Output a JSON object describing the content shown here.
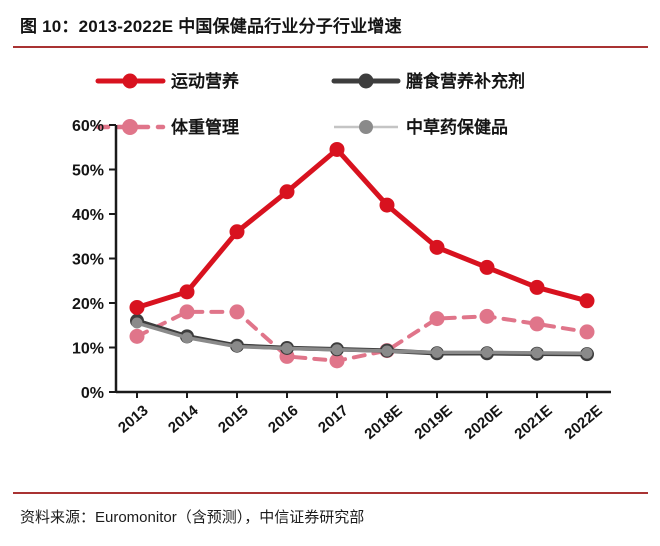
{
  "figure": {
    "title": "图 10：2013-2022E 中国保健品行业分子行业增速",
    "source": "资料来源：Euromonitor（含预测），中信证券研究部"
  },
  "colors": {
    "rule_red": "#a93333",
    "sports_red": "#d8121f",
    "dietary_dark": "#3d3d3d",
    "weight_pink": "#e0758a",
    "herbal_gray": "#8a8a8a",
    "herbal_legend_line": "#c4c4c4",
    "axis_black": "#1a1a1a"
  },
  "chart_data": {
    "type": "line",
    "title": "2013-2022E 中国保健品行业分子行业增速",
    "categories": [
      "2013",
      "2014",
      "2015",
      "2016",
      "2017",
      "2018E",
      "2019E",
      "2020E",
      "2021E",
      "2022E"
    ],
    "series": [
      {
        "key": "sports",
        "name": "运动营养",
        "color_key": "sports_red",
        "style": "solid",
        "values": [
          19,
          22.5,
          36,
          45,
          54.5,
          42,
          32.5,
          28,
          23.5,
          20.5
        ]
      },
      {
        "key": "dietary",
        "name": "膳食营养补充剂",
        "color_key": "dietary_dark",
        "style": "solid",
        "values": [
          16,
          12.5,
          10.4,
          9.9,
          9.6,
          9.3,
          8.7,
          8.7,
          8.6,
          8.5
        ]
      },
      {
        "key": "weight",
        "name": "体重管理",
        "color_key": "weight_pink",
        "style": "dashed",
        "values": [
          12.5,
          18,
          18,
          8,
          7,
          9.3,
          16.5,
          17,
          15.3,
          13.5
        ]
      },
      {
        "key": "herbal",
        "name": "中草药保健品",
        "color_key": "herbal_gray",
        "style": "solid",
        "values": [
          15.5,
          12.2,
          10.2,
          9.8,
          9.5,
          9.2,
          8.9,
          8.9,
          8.8,
          8.7
        ]
      }
    ],
    "ylim": [
      0,
      60
    ],
    "yticks": [
      "0%",
      "10%",
      "20%",
      "30%",
      "40%",
      "50%",
      "60%"
    ],
    "xlabel": "",
    "ylabel": "",
    "grid": false,
    "legend_position": "top"
  }
}
